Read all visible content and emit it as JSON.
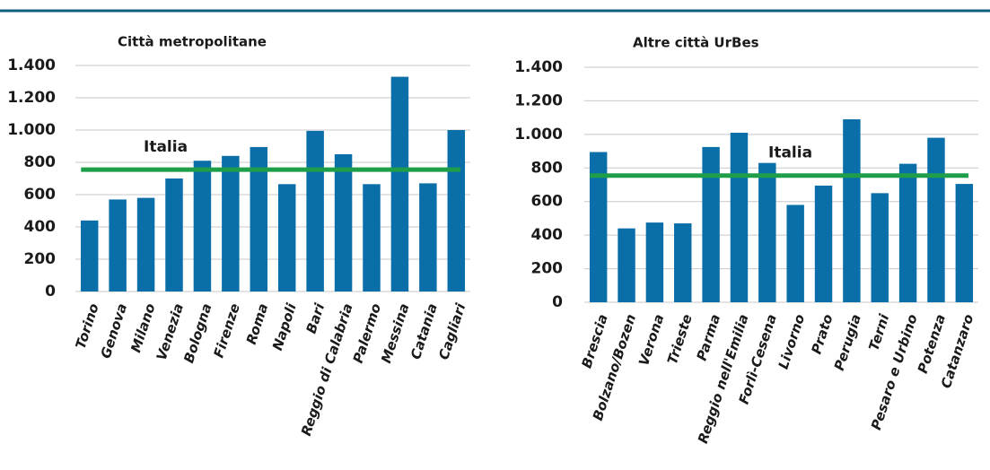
{
  "chart_data": [
    {
      "type": "bar",
      "title": "Città metropolitane",
      "categories": [
        "Torino",
        "Genova",
        "Milano",
        "Venezia",
        "Bologna",
        "Firenze",
        "Roma",
        "Napoli",
        "Bari",
        "Reggio di Calabria",
        "Palermo",
        "Messina",
        "Catania",
        "Cagliari"
      ],
      "values": [
        440,
        570,
        580,
        700,
        810,
        840,
        895,
        665,
        995,
        850,
        665,
        1330,
        670,
        1000
      ],
      "color": "#0a6fa8",
      "reference": {
        "label": "Italia",
        "value": 755,
        "color": "#1f9e4a"
      },
      "ylim": [
        0,
        1400
      ],
      "yticks": [
        0,
        200,
        400,
        600,
        800,
        {
          "value": 1000,
          "label": "1.000"
        },
        {
          "value": 1200,
          "label": "1.200"
        },
        {
          "value": 1400,
          "label": "1.400"
        }
      ],
      "grid": true
    },
    {
      "type": "bar",
      "title": "Altre città UrBes",
      "categories": [
        "Brescia",
        "Bolzano/Bozen",
        "Verona",
        "Trieste",
        "Parma",
        "Reggio nell'Emilia",
        "Forlì-Cesena",
        "Livorno",
        "Prato",
        "Perugia",
        "Terni",
        "Pesaro e Urbino",
        "Potenza",
        "Catanzaro"
      ],
      "values": [
        895,
        440,
        475,
        470,
        925,
        1010,
        830,
        580,
        695,
        1090,
        650,
        825,
        980,
        705
      ],
      "color": "#0a6fa8",
      "reference": {
        "label": "Italia",
        "value": 755,
        "color": "#1f9e4a"
      },
      "ylim": [
        0,
        1400
      ],
      "yticks": [
        0,
        200,
        400,
        600,
        800,
        {
          "value": 1000,
          "label": "1.000"
        },
        {
          "value": 1200,
          "label": "1.200"
        },
        {
          "value": 1400,
          "label": "1.400"
        }
      ],
      "grid": true
    }
  ]
}
